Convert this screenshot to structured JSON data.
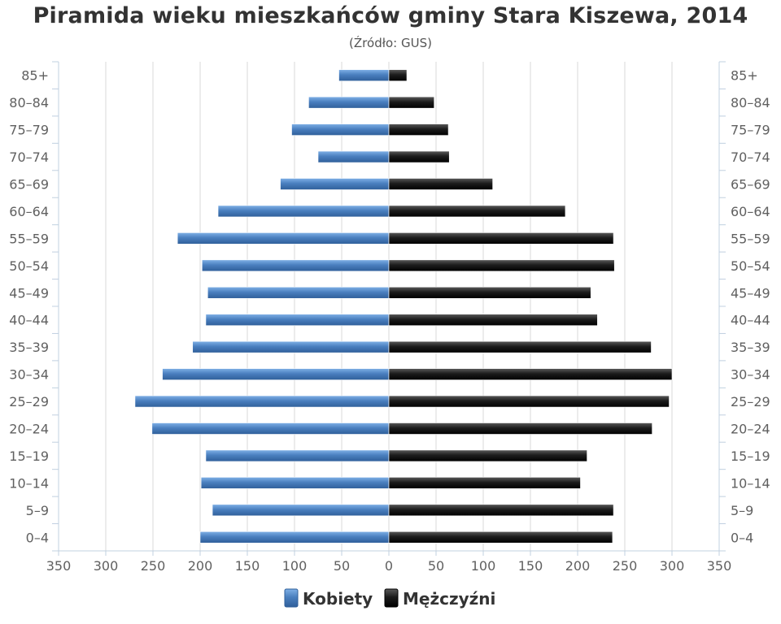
{
  "title": "Piramida wieku mieszkańców gminy Stara Kiszewa, 2014",
  "subtitle": "(Źródło: GUS)",
  "colors": {
    "kobiety": "#4a7fbf",
    "mezczyzni": "#1c1c1c",
    "grid": "#d8d8d8",
    "axis": "#c0d0e0"
  },
  "chart_data": {
    "type": "bar",
    "orientation": "horizontal-population-pyramid",
    "categories": [
      "85+",
      "80-84",
      "75-79",
      "70-74",
      "65-69",
      "60-64",
      "55-59",
      "50-54",
      "45-49",
      "40-44",
      "35-39",
      "30-34",
      "25-29",
      "20-24",
      "15-19",
      "10-14",
      "5-9",
      "0-4"
    ],
    "series": [
      {
        "name": "Kobiety",
        "values": [
          53,
          85,
          103,
          75,
          115,
          181,
          224,
          198,
          192,
          194,
          208,
          240,
          269,
          251,
          194,
          199,
          187,
          200
        ]
      },
      {
        "name": "Mężczyźni",
        "values": [
          19,
          48,
          63,
          64,
          110,
          187,
          238,
          239,
          214,
          221,
          278,
          300,
          297,
          279,
          210,
          203,
          238,
          237
        ]
      }
    ],
    "xlim": [
      -350,
      350
    ],
    "x_ticks": [
      "350",
      "300",
      "250",
      "200",
      "150",
      "100",
      "50",
      "0",
      "50",
      "100",
      "150",
      "200",
      "250",
      "300",
      "350"
    ],
    "grid": true,
    "legend": "bottom-center"
  },
  "legend": {
    "kobiety_label": "Kobiety",
    "mezczyzni_label": "Mężczyźni"
  }
}
